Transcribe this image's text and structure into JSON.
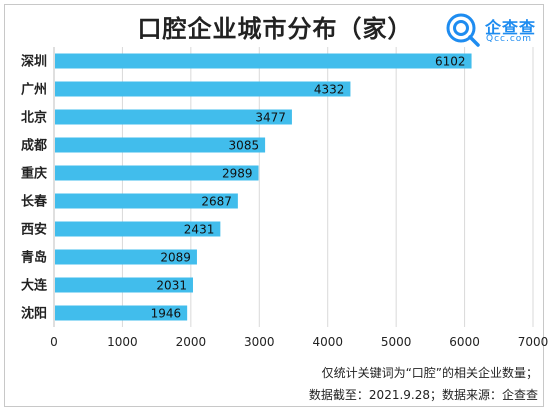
{
  "title": "口腔企业城市分布（家）",
  "logo": {
    "name": "企查查",
    "domain": "Qcc.com",
    "color": "#1e8cf0"
  },
  "notes": {
    "line1": "仅统计关键词为“口腔”的相关企业数量；",
    "line2": "数据截至：2021.9.28；数据来源：企查查"
  },
  "chart_data": {
    "type": "bar",
    "orientation": "horizontal",
    "title": "口腔企业城市分布（家）",
    "categories": [
      "深圳",
      "广州",
      "北京",
      "成都",
      "重庆",
      "长春",
      "西安",
      "青岛",
      "大连",
      "沈阳"
    ],
    "values": [
      6102,
      4332,
      3477,
      3085,
      2989,
      2687,
      2431,
      2089,
      2031,
      1946
    ],
    "xlim": [
      0,
      7000
    ],
    "xticks": [
      0,
      1000,
      2000,
      3000,
      4000,
      5000,
      6000,
      7000
    ],
    "grid": true,
    "bar_color": "#41bdec",
    "data_labels": true
  }
}
